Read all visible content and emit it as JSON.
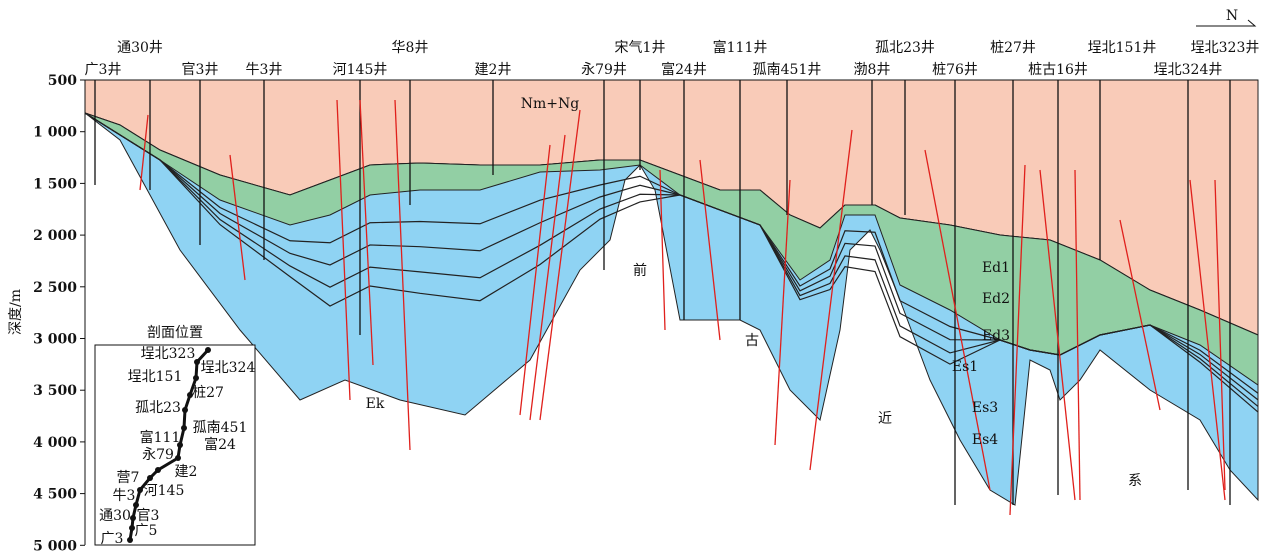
{
  "north_label": "N",
  "depth_axis": {
    "label": "深度/m",
    "ticks": [
      "500",
      "1 000",
      "1 500",
      "2 000",
      "2 500",
      "3 000",
      "3 500",
      "4 000",
      "4 500",
      "5 000"
    ]
  },
  "wells_top": [
    "通30井",
    "华8井",
    "宋气1井",
    "富111井",
    "孤北23井",
    "桩27井",
    "埕北151井",
    "埕北323井"
  ],
  "wells_bottom": [
    "广3井",
    "官3井",
    "牛3井",
    "河145井",
    "建2井",
    "永79井",
    "富24井",
    "孤南451井",
    "渤8井",
    "桩76井",
    "桩古16井",
    "埕北324井"
  ],
  "strata": [
    "Nm+Ng",
    "Ek",
    "Ed1",
    "Ed2",
    "Ed3",
    "Es1",
    "Es3",
    "Es4"
  ],
  "basement": [
    "前",
    "古",
    "近",
    "系"
  ],
  "inset": {
    "title": "剖面位置",
    "labels": [
      "埕北323",
      "埕北324",
      "埕北151",
      "桩27",
      "孤北23",
      "孤南451",
      "富111",
      "富24",
      "永79",
      "建2",
      "营7",
      "河145",
      "牛3",
      "通30",
      "官3",
      "广5",
      "广3"
    ]
  }
}
